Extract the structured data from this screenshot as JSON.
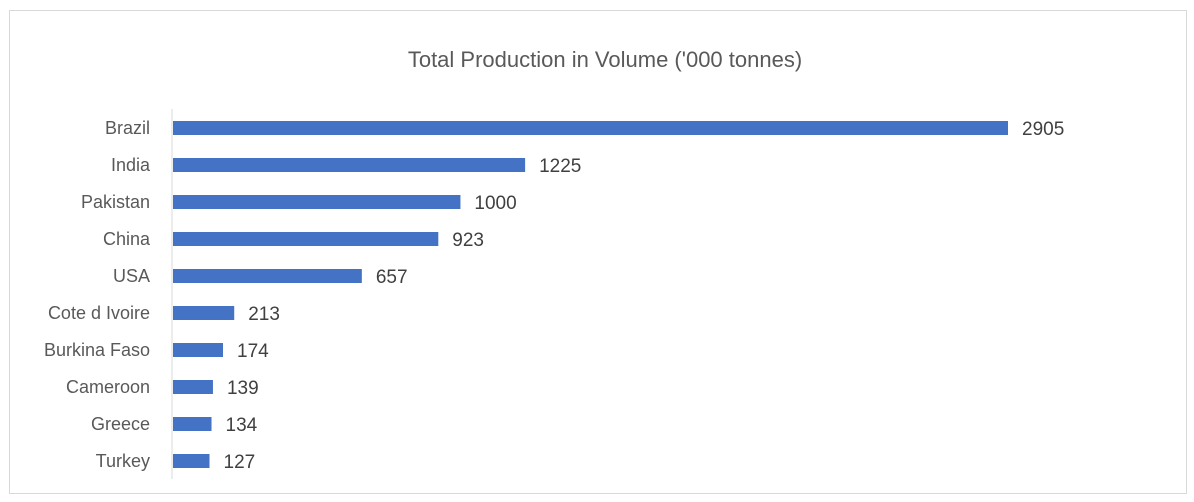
{
  "chart_data": {
    "type": "bar",
    "orientation": "horizontal",
    "title": "Total Production in Volume ('000 tonnes)",
    "categories": [
      "Brazil",
      "India",
      "Pakistan",
      "China",
      "USA",
      "Cote d Ivoire",
      "Burkina Faso",
      "Cameroon",
      "Greece",
      "Turkey"
    ],
    "values": [
      2905,
      1225,
      1000,
      923,
      657,
      213,
      174,
      139,
      134,
      127
    ],
    "xlim": [
      0,
      2905
    ],
    "grid": false,
    "legend": "none",
    "bar_color": "#4472c4",
    "data_labels": true
  }
}
